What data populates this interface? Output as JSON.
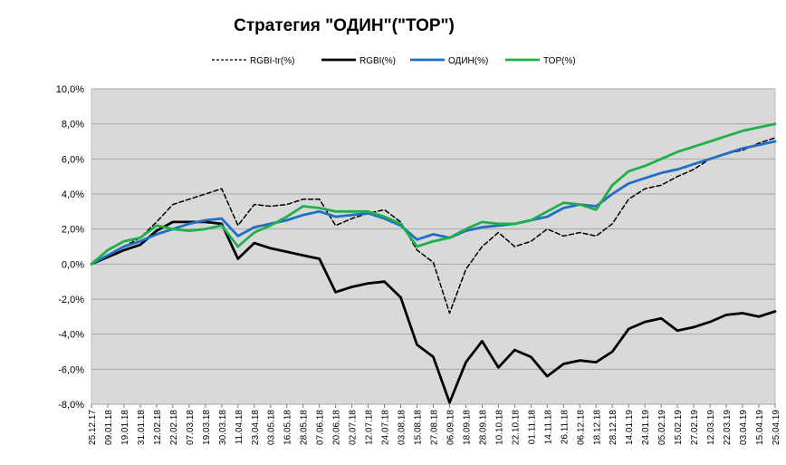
{
  "chart_data": {
    "type": "line",
    "title": "Стратегия \"ОДИН\"(\"ТОР\")",
    "legend_position": "top",
    "grid": true,
    "ylim": [
      -0.08,
      0.1
    ],
    "y_ticks": [
      {
        "value": 0.1,
        "label": "10,0%"
      },
      {
        "value": 0.08,
        "label": "8,0%"
      },
      {
        "value": 0.06,
        "label": "6,0%"
      },
      {
        "value": 0.04,
        "label": "4,0%"
      },
      {
        "value": 0.02,
        "label": "2,0%"
      },
      {
        "value": 0.0,
        "label": "0,0%"
      },
      {
        "value": -0.02,
        "label": "-2,0%"
      },
      {
        "value": -0.04,
        "label": "-4,0%"
      },
      {
        "value": -0.06,
        "label": "-6,0%"
      },
      {
        "value": -0.08,
        "label": "-8,0%"
      }
    ],
    "x_ticks": [
      "25.12.17",
      "09.01.18",
      "19.01.18",
      "31.01.18",
      "12.02.18",
      "22.02.18",
      "07.03.18",
      "19.03.18",
      "30.03.18",
      "11.04.18",
      "23.04.18",
      "03.05.18",
      "16.05.18",
      "28.05.18",
      "07.06.18",
      "20.06.18",
      "02.07.18",
      "12.07.18",
      "24.07.18",
      "03.08.18",
      "15.08.18",
      "27.08.18",
      "06.09.18",
      "18.09.18",
      "28.09.18",
      "10.10.18",
      "22.10.18",
      "01.11.18",
      "14.11.18",
      "26.11.18",
      "06.12.18",
      "18.12.18",
      "28.12.18",
      "14.01.19",
      "24.01.19",
      "05.02.19",
      "15.02.19",
      "27.02.19",
      "12.03.19",
      "22.03.19",
      "03.04.19",
      "15.04.19",
      "25.04.19"
    ],
    "series": [
      {
        "name": "RGBI-tr(%)",
        "color": "#000000",
        "style": "dashed",
        "points": [
          [
            0,
            0.0
          ],
          [
            1,
            0.005
          ],
          [
            2,
            0.01
          ],
          [
            3,
            0.015
          ],
          [
            4,
            0.024
          ],
          [
            5,
            0.034
          ],
          [
            6,
            0.037
          ],
          [
            7,
            0.04
          ],
          [
            8,
            0.043
          ],
          [
            9,
            0.022
          ],
          [
            10,
            0.034
          ],
          [
            11,
            0.033
          ],
          [
            12,
            0.034
          ],
          [
            13,
            0.037
          ],
          [
            14,
            0.037
          ],
          [
            15,
            0.022
          ],
          [
            16,
            0.026
          ],
          [
            17,
            0.029
          ],
          [
            18,
            0.031
          ],
          [
            19,
            0.024
          ],
          [
            20,
            0.008
          ],
          [
            21,
            0.001
          ],
          [
            22,
            -0.028
          ],
          [
            23,
            -0.003
          ],
          [
            24,
            0.01
          ],
          [
            25,
            0.018
          ],
          [
            26,
            0.01
          ],
          [
            27,
            0.013
          ],
          [
            28,
            0.02
          ],
          [
            29,
            0.016
          ],
          [
            30,
            0.018
          ],
          [
            31,
            0.016
          ],
          [
            32,
            0.023
          ],
          [
            33,
            0.037
          ],
          [
            34,
            0.043
          ],
          [
            35,
            0.045
          ],
          [
            36,
            0.05
          ],
          [
            37,
            0.054
          ],
          [
            38,
            0.06
          ],
          [
            39,
            0.063
          ],
          [
            40,
            0.065
          ],
          [
            41,
            0.069
          ],
          [
            42,
            0.072
          ]
        ]
      },
      {
        "name": "RGBI(%)",
        "color": "#000000",
        "style": "solid-thick",
        "points": [
          [
            0,
            0.0
          ],
          [
            1,
            0.004
          ],
          [
            2,
            0.008
          ],
          [
            3,
            0.011
          ],
          [
            4,
            0.019
          ],
          [
            5,
            0.024
          ],
          [
            6,
            0.024
          ],
          [
            7,
            0.024
          ],
          [
            8,
            0.023
          ],
          [
            9,
            0.003
          ],
          [
            10,
            0.012
          ],
          [
            11,
            0.009
          ],
          [
            12,
            0.007
          ],
          [
            13,
            0.005
          ],
          [
            14,
            0.003
          ],
          [
            15,
            -0.016
          ],
          [
            16,
            -0.013
          ],
          [
            17,
            -0.011
          ],
          [
            18,
            -0.01
          ],
          [
            19,
            -0.019
          ],
          [
            20,
            -0.046
          ],
          [
            21,
            -0.053
          ],
          [
            22,
            -0.079
          ],
          [
            23,
            -0.056
          ],
          [
            24,
            -0.044
          ],
          [
            25,
            -0.059
          ],
          [
            26,
            -0.049
          ],
          [
            27,
            -0.053
          ],
          [
            28,
            -0.064
          ],
          [
            29,
            -0.057
          ],
          [
            30,
            -0.055
          ],
          [
            31,
            -0.056
          ],
          [
            32,
            -0.05
          ],
          [
            33,
            -0.037
          ],
          [
            34,
            -0.033
          ],
          [
            35,
            -0.031
          ],
          [
            36,
            -0.038
          ],
          [
            37,
            -0.036
          ],
          [
            38,
            -0.033
          ],
          [
            39,
            -0.029
          ],
          [
            40,
            -0.028
          ],
          [
            41,
            -0.03
          ],
          [
            42,
            -0.027
          ]
        ]
      },
      {
        "name": "ОДИН(%)",
        "color": "#1f6ec8",
        "style": "solid-thick",
        "points": [
          [
            0,
            0.0
          ],
          [
            1,
            0.005
          ],
          [
            2,
            0.01
          ],
          [
            3,
            0.013
          ],
          [
            4,
            0.017
          ],
          [
            5,
            0.02
          ],
          [
            6,
            0.023
          ],
          [
            7,
            0.025
          ],
          [
            8,
            0.026
          ],
          [
            9,
            0.016
          ],
          [
            10,
            0.021
          ],
          [
            11,
            0.023
          ],
          [
            12,
            0.025
          ],
          [
            13,
            0.028
          ],
          [
            14,
            0.03
          ],
          [
            15,
            0.027
          ],
          [
            16,
            0.028
          ],
          [
            17,
            0.029
          ],
          [
            18,
            0.026
          ],
          [
            19,
            0.022
          ],
          [
            20,
            0.014
          ],
          [
            21,
            0.017
          ],
          [
            22,
            0.015
          ],
          [
            23,
            0.019
          ],
          [
            24,
            0.021
          ],
          [
            25,
            0.022
          ],
          [
            26,
            0.023
          ],
          [
            27,
            0.025
          ],
          [
            28,
            0.027
          ],
          [
            29,
            0.032
          ],
          [
            30,
            0.034
          ],
          [
            31,
            0.033
          ],
          [
            32,
            0.04
          ],
          [
            33,
            0.046
          ],
          [
            34,
            0.049
          ],
          [
            35,
            0.052
          ],
          [
            36,
            0.054
          ],
          [
            37,
            0.057
          ],
          [
            38,
            0.06
          ],
          [
            39,
            0.063
          ],
          [
            40,
            0.066
          ],
          [
            41,
            0.068
          ],
          [
            42,
            0.07
          ]
        ]
      },
      {
        "name": "ТОР(%)",
        "color": "#1fb04a",
        "style": "solid-thick",
        "points": [
          [
            0,
            0.0
          ],
          [
            1,
            0.008
          ],
          [
            2,
            0.013
          ],
          [
            3,
            0.015
          ],
          [
            4,
            0.022
          ],
          [
            5,
            0.02
          ],
          [
            6,
            0.019
          ],
          [
            7,
            0.02
          ],
          [
            8,
            0.022
          ],
          [
            9,
            0.01
          ],
          [
            10,
            0.018
          ],
          [
            11,
            0.022
          ],
          [
            12,
            0.027
          ],
          [
            13,
            0.033
          ],
          [
            14,
            0.032
          ],
          [
            15,
            0.03
          ],
          [
            16,
            0.03
          ],
          [
            17,
            0.03
          ],
          [
            18,
            0.027
          ],
          [
            19,
            0.023
          ],
          [
            20,
            0.01
          ],
          [
            21,
            0.013
          ],
          [
            22,
            0.015
          ],
          [
            23,
            0.02
          ],
          [
            24,
            0.024
          ],
          [
            25,
            0.023
          ],
          [
            26,
            0.023
          ],
          [
            27,
            0.025
          ],
          [
            28,
            0.03
          ],
          [
            29,
            0.035
          ],
          [
            30,
            0.034
          ],
          [
            31,
            0.031
          ],
          [
            32,
            0.045
          ],
          [
            33,
            0.053
          ],
          [
            34,
            0.056
          ],
          [
            35,
            0.06
          ],
          [
            36,
            0.064
          ],
          [
            37,
            0.067
          ],
          [
            38,
            0.07
          ],
          [
            39,
            0.073
          ],
          [
            40,
            0.076
          ],
          [
            41,
            0.078
          ],
          [
            42,
            0.08
          ]
        ]
      }
    ]
  }
}
